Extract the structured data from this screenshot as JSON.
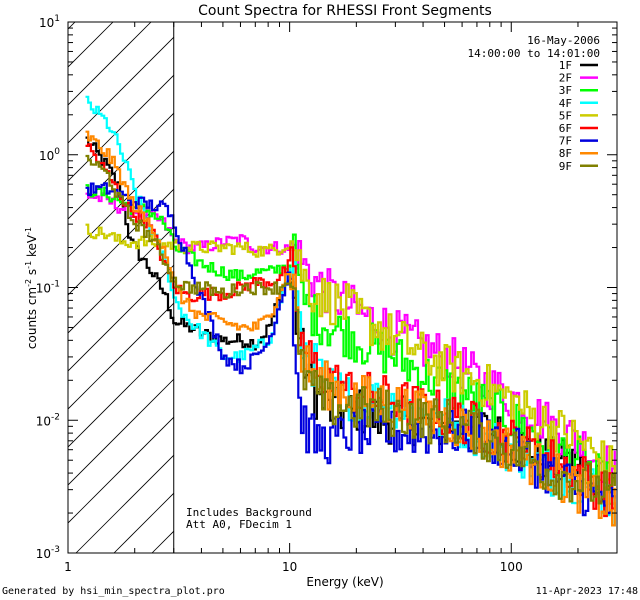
{
  "chart_data": {
    "type": "line",
    "title": "Count Spectra for RHESSI Front Segments",
    "xlabel": "Energy (keV)",
    "ylabel": "counts cm^-2 s^-1 keV^-1",
    "xscale": "log",
    "yscale": "log",
    "xlim": [
      1,
      300
    ],
    "ylim": [
      0.001,
      10
    ],
    "x_ticks": [
      {
        "value": 1,
        "label": "1"
      },
      {
        "value": 10,
        "label": "10"
      },
      {
        "value": 100,
        "label": "100"
      }
    ],
    "y_ticks": [
      {
        "value": 0.001,
        "base": "10",
        "exp": "-3"
      },
      {
        "value": 0.01,
        "base": "10",
        "exp": "-2"
      },
      {
        "value": 0.1,
        "base": "10",
        "exp": "-1"
      },
      {
        "value": 1,
        "base": "10",
        "exp": "0"
      },
      {
        "value": 10,
        "base": "10",
        "exp": "1"
      }
    ],
    "date": "16-May-2006",
    "time_range": "14:00:00 to 14:01:00",
    "hatched_region": {
      "x_from": 1,
      "x_to": 3
    },
    "annotations": [
      "Includes Background",
      "Att A0, FDecim 1"
    ],
    "series": [
      {
        "name": "1F",
        "color": "#000000",
        "x": [
          1.2,
          1.5,
          1.7,
          1.9,
          2.3,
          2.7,
          3.0,
          3.5,
          4,
          5,
          6,
          7,
          8,
          9,
          10,
          10.5,
          11,
          12,
          13,
          15,
          18,
          20,
          25,
          30,
          35,
          40,
          50,
          60,
          70,
          80,
          100,
          120,
          150,
          200,
          250,
          300
        ],
        "values": [
          1.3,
          0.8,
          0.55,
          0.22,
          0.14,
          0.09,
          0.055,
          0.05,
          0.045,
          0.04,
          0.04,
          0.038,
          0.05,
          0.09,
          0.12,
          0.06,
          0.04,
          0.02,
          0.015,
          0.012,
          0.011,
          0.012,
          0.01,
          0.01,
          0.01,
          0.009,
          0.009,
          0.008,
          0.009,
          0.008,
          0.007,
          0.006,
          0.005,
          0.0045,
          0.0035,
          0.003
        ]
      },
      {
        "name": "2F",
        "color": "#ff00ff",
        "x": [
          1.2,
          1.5,
          1.7,
          1.9,
          2.3,
          2.7,
          3.0,
          3.5,
          4,
          5,
          6,
          7,
          8,
          9,
          10,
          10.5,
          11,
          12,
          13,
          15,
          18,
          20,
          25,
          30,
          35,
          40,
          50,
          60,
          70,
          80,
          100,
          120,
          150,
          200,
          250,
          300
        ],
        "values": [
          0.5,
          0.45,
          0.4,
          0.38,
          0.36,
          0.3,
          0.22,
          0.2,
          0.2,
          0.22,
          0.23,
          0.2,
          0.2,
          0.2,
          0.19,
          0.2,
          0.17,
          0.13,
          0.11,
          0.09,
          0.075,
          0.065,
          0.055,
          0.045,
          0.04,
          0.035,
          0.03,
          0.025,
          0.02,
          0.018,
          0.015,
          0.012,
          0.009,
          0.007,
          0.005,
          0.004
        ]
      },
      {
        "name": "3F",
        "color": "#00ff00",
        "x": [
          1.2,
          1.5,
          1.7,
          1.9,
          2.3,
          2.7,
          3.0,
          3.5,
          4,
          5,
          6,
          7,
          8,
          9,
          10,
          10.5,
          11,
          12,
          13,
          15,
          18,
          20,
          25,
          30,
          35,
          40,
          50,
          60,
          70,
          80,
          100,
          120,
          150,
          200,
          250,
          300
        ],
        "values": [
          0.55,
          0.5,
          0.45,
          0.4,
          0.38,
          0.3,
          0.2,
          0.17,
          0.15,
          0.13,
          0.12,
          0.13,
          0.13,
          0.14,
          0.15,
          0.18,
          0.09,
          0.07,
          0.06,
          0.05,
          0.045,
          0.04,
          0.034,
          0.03,
          0.025,
          0.022,
          0.018,
          0.016,
          0.014,
          0.012,
          0.01,
          0.008,
          0.006,
          0.005,
          0.0035,
          0.003
        ]
      },
      {
        "name": "4F",
        "color": "#00ffff",
        "x": [
          1.2,
          1.5,
          1.7,
          1.9,
          2.3,
          2.7,
          3.0,
          3.5,
          4,
          5,
          6,
          7,
          8,
          9,
          10,
          10.5,
          11,
          12,
          13,
          15,
          18,
          20,
          25,
          30,
          35,
          40,
          50,
          60,
          70,
          80,
          100,
          120,
          150,
          200,
          250,
          300
        ],
        "values": [
          2.5,
          1.7,
          1.1,
          0.65,
          0.28,
          0.17,
          0.08,
          0.055,
          0.045,
          0.03,
          0.03,
          0.035,
          0.04,
          0.08,
          0.15,
          0.12,
          0.04,
          0.03,
          0.025,
          0.018,
          0.015,
          0.015,
          0.014,
          0.013,
          0.012,
          0.011,
          0.01,
          0.009,
          0.008,
          0.007,
          0.006,
          0.005,
          0.004,
          0.0035,
          0.003,
          0.002
        ]
      },
      {
        "name": "5F",
        "color": "#cccc00",
        "x": [
          1.2,
          1.5,
          1.7,
          1.9,
          2.3,
          2.7,
          3.0,
          3.5,
          4,
          5,
          6,
          7,
          8,
          9,
          10,
          10.5,
          11,
          12,
          13,
          15,
          18,
          20,
          25,
          30,
          35,
          40,
          50,
          60,
          70,
          80,
          100,
          120,
          150,
          200,
          250,
          300
        ],
        "values": [
          0.27,
          0.25,
          0.22,
          0.22,
          0.22,
          0.21,
          0.21,
          0.2,
          0.2,
          0.2,
          0.2,
          0.19,
          0.19,
          0.2,
          0.22,
          0.2,
          0.15,
          0.1,
          0.09,
          0.08,
          0.07,
          0.06,
          0.05,
          0.04,
          0.036,
          0.03,
          0.025,
          0.022,
          0.02,
          0.017,
          0.014,
          0.011,
          0.009,
          0.007,
          0.005,
          0.004
        ]
      },
      {
        "name": "6F",
        "color": "#ff0000",
        "x": [
          1.2,
          1.5,
          1.7,
          1.9,
          2.3,
          2.7,
          3.0,
          3.5,
          4,
          5,
          6,
          7,
          8,
          9,
          10,
          10.5,
          11,
          12,
          13,
          15,
          18,
          20,
          25,
          30,
          35,
          40,
          50,
          60,
          70,
          80,
          100,
          120,
          150,
          200,
          250,
          300
        ],
        "values": [
          1.2,
          0.7,
          0.5,
          0.38,
          0.3,
          0.15,
          0.1,
          0.085,
          0.09,
          0.09,
          0.1,
          0.11,
          0.11,
          0.12,
          0.15,
          0.09,
          0.04,
          0.03,
          0.025,
          0.02,
          0.017,
          0.016,
          0.015,
          0.014,
          0.013,
          0.012,
          0.011,
          0.01,
          0.009,
          0.008,
          0.007,
          0.006,
          0.005,
          0.004,
          0.003,
          0.0025
        ]
      },
      {
        "name": "7F",
        "color": "#0000dd",
        "x": [
          1.2,
          1.5,
          1.7,
          1.9,
          2.3,
          2.7,
          3.0,
          3.5,
          4,
          5,
          6,
          7,
          8,
          9,
          10,
          10.5,
          11,
          12,
          13,
          15,
          18,
          20,
          25,
          30,
          35,
          40,
          50,
          60,
          70,
          80,
          100,
          120,
          150,
          200,
          250,
          300
        ],
        "values": [
          0.55,
          0.55,
          0.5,
          0.45,
          0.42,
          0.4,
          0.3,
          0.15,
          0.08,
          0.03,
          0.025,
          0.03,
          0.04,
          0.08,
          0.15,
          0.03,
          0.012,
          0.008,
          0.007,
          0.007,
          0.008,
          0.008,
          0.008,
          0.008,
          0.008,
          0.008,
          0.008,
          0.008,
          0.008,
          0.007,
          0.006,
          0.005,
          0.004,
          0.003,
          0.0025,
          0.002
        ]
      },
      {
        "name": "8F",
        "color": "#ff8800",
        "x": [
          1.2,
          1.5,
          1.7,
          1.9,
          2.3,
          2.7,
          3.0,
          3.5,
          4,
          5,
          6,
          7,
          8,
          9,
          10,
          10.5,
          11,
          12,
          13,
          15,
          18,
          20,
          25,
          30,
          35,
          40,
          50,
          60,
          70,
          80,
          100,
          120,
          150,
          200,
          250,
          300
        ],
        "values": [
          1.4,
          1.0,
          0.7,
          0.45,
          0.3,
          0.2,
          0.1,
          0.07,
          0.06,
          0.055,
          0.05,
          0.05,
          0.06,
          0.1,
          0.14,
          0.09,
          0.03,
          0.025,
          0.02,
          0.018,
          0.016,
          0.015,
          0.014,
          0.013,
          0.012,
          0.011,
          0.01,
          0.009,
          0.008,
          0.007,
          0.006,
          0.005,
          0.004,
          0.003,
          0.0025,
          0.002
        ]
      },
      {
        "name": "9F",
        "color": "#808000",
        "x": [
          1.2,
          1.5,
          1.7,
          1.9,
          2.3,
          2.7,
          3.0,
          3.5,
          4,
          5,
          6,
          7,
          8,
          9,
          10,
          10.5,
          11,
          12,
          13,
          15,
          18,
          20,
          25,
          30,
          35,
          40,
          50,
          60,
          70,
          80,
          100,
          120,
          150,
          200,
          250,
          300
        ],
        "values": [
          0.95,
          0.7,
          0.45,
          0.33,
          0.25,
          0.16,
          0.11,
          0.1,
          0.1,
          0.09,
          0.1,
          0.1,
          0.1,
          0.1,
          0.12,
          0.07,
          0.025,
          0.02,
          0.016,
          0.013,
          0.013,
          0.012,
          0.012,
          0.011,
          0.011,
          0.01,
          0.01,
          0.009,
          0.008,
          0.007,
          0.006,
          0.005,
          0.004,
          0.0035,
          0.003,
          0.0025
        ]
      }
    ]
  },
  "footer": {
    "generated_by": "Generated by hsi_min_spectra_plot.pro",
    "timestamp": "11-Apr-2023 17:48"
  }
}
